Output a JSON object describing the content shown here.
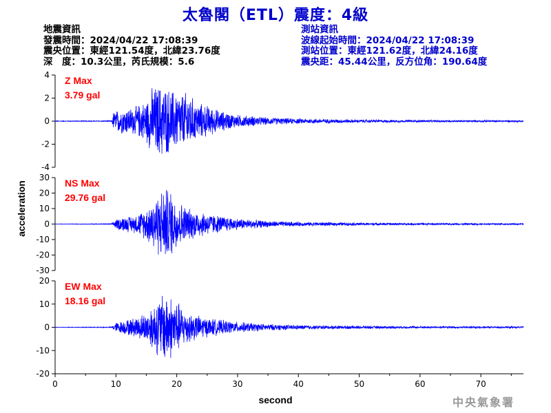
{
  "header": {
    "title": "太魯閣（ETL）震度：4級"
  },
  "quake_info": {
    "heading": "地震資訊",
    "time": "發震時間：2024/04/22 17:08:39",
    "location": "震央位置：東經121.54度，北緯23.76度",
    "depth_magnitude": "深　度：10.3公里，芮氏規模：5.6"
  },
  "station_info": {
    "heading": "測站資訊",
    "onset_time": "波線起始時間：2024/04/22 17:08:39",
    "location": "測站位置：東經121.62度，北緯24.16度",
    "distance_azimuth": "震央距：45.44公里，反方位角：190.64度"
  },
  "footer": {
    "agency": "中央氣象署"
  },
  "colors": {
    "trace": "#0000ff",
    "label": "#ff0000",
    "axis": "#000000",
    "title": "#0000cc"
  },
  "chart_data": {
    "type": "line",
    "xlabel": "second",
    "ylabel": "acceleration",
    "xlim": [
      0,
      77
    ],
    "xticks": [
      0,
      10,
      20,
      30,
      40,
      50,
      60,
      70
    ],
    "grid": false,
    "panels": [
      {
        "name": "Z",
        "max_label": "Z Max",
        "max_value": "3.79 gal",
        "ylim": [
          -4,
          4
        ],
        "yticks": [
          -4,
          -2,
          0,
          2,
          4
        ],
        "envelope": {
          "x": [
            0,
            9.3,
            9.6,
            11,
            13,
            15,
            16,
            17.5,
            19,
            21,
            22,
            23,
            25,
            27,
            30,
            35,
            40,
            50,
            60,
            77
          ],
          "amp": [
            0.03,
            0.05,
            0.9,
            1.2,
            1.3,
            2.0,
            3.2,
            3.5,
            3.0,
            2.6,
            2.8,
            1.8,
            1.5,
            1.0,
            0.6,
            0.35,
            0.25,
            0.15,
            0.1,
            0.08
          ]
        }
      },
      {
        "name": "NS",
        "max_label": "NS Max",
        "max_value": "29.76 gal",
        "ylim": [
          -30,
          30
        ],
        "yticks": [
          -30,
          -20,
          -10,
          0,
          10,
          20,
          30
        ],
        "envelope": {
          "x": [
            0,
            9.3,
            9.8,
            11,
            13,
            15,
            16.5,
            18,
            19,
            20,
            22,
            24,
            27,
            30,
            35,
            40,
            50,
            60,
            77
          ],
          "amp": [
            0.1,
            0.3,
            3,
            5,
            6,
            11,
            20,
            26,
            24,
            17,
            11,
            9,
            6,
            4,
            2.2,
            1.5,
            1.0,
            0.7,
            0.5
          ]
        }
      },
      {
        "name": "EW",
        "max_label": "EW Max",
        "max_value": "18.16 gal",
        "ylim": [
          -20,
          20
        ],
        "yticks": [
          -20,
          -10,
          0,
          10,
          20
        ],
        "envelope": {
          "x": [
            0,
            9.3,
            9.8,
            11,
            13,
            15,
            16.5,
            18,
            19.5,
            21,
            23,
            25,
            27,
            30,
            35,
            40,
            50,
            60,
            77
          ],
          "amp": [
            0.1,
            0.2,
            2,
            3,
            4.5,
            7,
            12,
            17,
            14,
            9,
            6,
            4.5,
            3.5,
            2.5,
            1.5,
            1.0,
            0.7,
            0.5,
            0.4
          ]
        }
      }
    ]
  }
}
